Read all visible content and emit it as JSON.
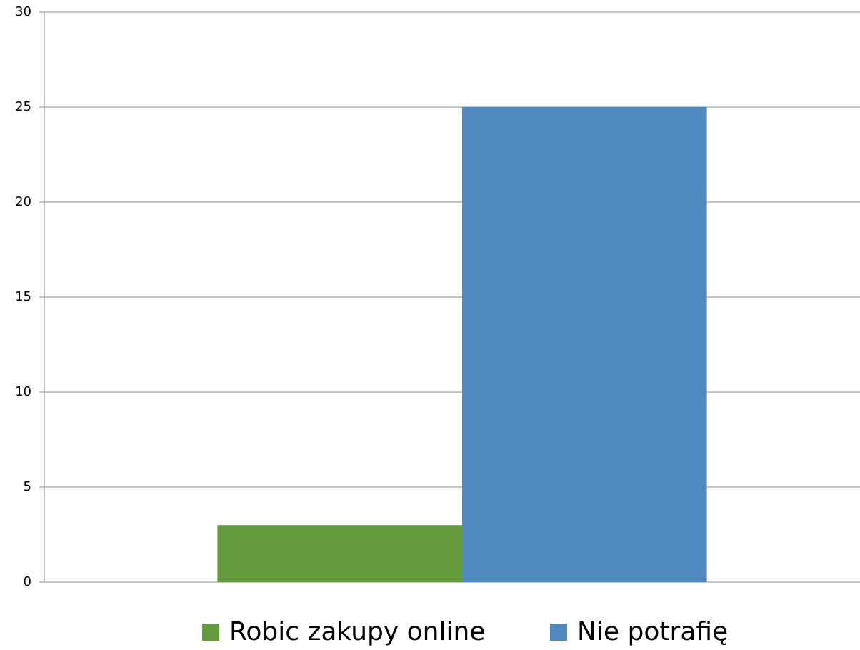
{
  "chart_data": {
    "type": "bar",
    "categories": [
      null
    ],
    "series": [
      {
        "name": "Robic zakupy online",
        "color": "#659a3f",
        "values": [
          3
        ]
      },
      {
        "name": "Nie potrafię",
        "color": "#4f89bd",
        "values": [
          25
        ]
      }
    ],
    "ylim": [
      0,
      30
    ],
    "yticks": [
      0,
      5,
      10,
      15,
      20,
      25,
      30
    ],
    "grid": true,
    "legend": "bottom"
  }
}
